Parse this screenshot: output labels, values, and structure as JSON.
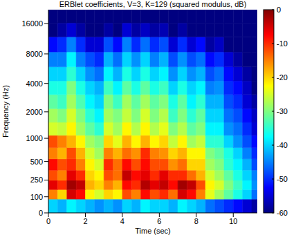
{
  "chart_data": {
    "type": "heatmap",
    "title": "ERBlet coefficients, V=3, K=129 (squared modulus, dB)",
    "x_label": "Time (sec)",
    "y_label": "Frequency (Hz)",
    "xlim": [
      0,
      11.3
    ],
    "xticks": [
      0,
      2,
      4,
      6,
      8,
      10
    ],
    "ylim": [
      0,
      22050
    ],
    "yticks": [
      0,
      100,
      250,
      500,
      1000,
      2000,
      4000,
      8000,
      16000
    ],
    "x": [
      0.25,
      0.75,
      1.25,
      1.75,
      2.25,
      2.75,
      3.25,
      3.75,
      4.25,
      4.75,
      5.25,
      5.75,
      6.25,
      6.75,
      7.25,
      7.75,
      8.25,
      8.75,
      9.25,
      9.75,
      10.25,
      10.75,
      11.25
    ],
    "y": [
      50,
      120,
      200,
      300,
      450,
      650,
      900,
      1300,
      1800,
      2600,
      3600,
      5000,
      7000,
      10000,
      14000,
      19000
    ],
    "values": [
      [
        -40,
        -42,
        -38,
        -40,
        -42,
        -44,
        -42,
        -44,
        -40,
        -42,
        -38,
        -40,
        -40,
        -42,
        -38,
        -40,
        -42,
        -46,
        -48,
        -50,
        -52,
        -55,
        -58
      ],
      [
        -15,
        -20,
        -5,
        -8,
        -22,
        -25,
        -20,
        -22,
        -12,
        -15,
        -8,
        -12,
        -10,
        -14,
        -5,
        -8,
        -15,
        -24,
        -28,
        -32,
        -36,
        -40,
        -46
      ],
      [
        -6,
        -10,
        -2,
        -4,
        -18,
        -20,
        -15,
        -18,
        -8,
        -10,
        -3,
        -6,
        -4,
        -8,
        -2,
        -4,
        -12,
        -22,
        -25,
        -30,
        -34,
        -38,
        -44
      ],
      [
        -12,
        -15,
        -6,
        -10,
        -20,
        -22,
        -12,
        -14,
        -4,
        -8,
        -6,
        -10,
        -6,
        -10,
        -10,
        -14,
        -18,
        -25,
        -28,
        -32,
        -36,
        -40,
        -45
      ],
      [
        -8,
        -12,
        -10,
        -15,
        -22,
        -25,
        -10,
        -14,
        -8,
        -12,
        -8,
        -12,
        -12,
        -16,
        -14,
        -20,
        -20,
        -28,
        -30,
        -35,
        -38,
        -42,
        -48
      ],
      [
        -15,
        -18,
        -12,
        -18,
        -25,
        -28,
        -15,
        -18,
        -14,
        -16,
        -10,
        -15,
        -16,
        -20,
        -18,
        -22,
        -22,
        -30,
        -32,
        -36,
        -40,
        -45,
        -50
      ],
      [
        -12,
        -15,
        -18,
        -22,
        -28,
        -30,
        -20,
        -24,
        -18,
        -22,
        -18,
        -22,
        -20,
        -26,
        -22,
        -28,
        -26,
        -35,
        -35,
        -40,
        -44,
        -48,
        -52
      ],
      [
        -25,
        -26,
        -22,
        -28,
        -32,
        -35,
        -25,
        -28,
        -22,
        -27,
        -22,
        -27,
        -24,
        -30,
        -27,
        -32,
        -30,
        -38,
        -38,
        -44,
        -46,
        -50,
        -55
      ],
      [
        -28,
        -30,
        -25,
        -30,
        -35,
        -38,
        -28,
        -30,
        -26,
        -30,
        -25,
        -30,
        -27,
        -34,
        -30,
        -35,
        -32,
        -40,
        -40,
        -46,
        -48,
        -52,
        -56
      ],
      [
        -32,
        -34,
        -28,
        -33,
        -38,
        -40,
        -30,
        -34,
        -28,
        -32,
        -28,
        -32,
        -30,
        -36,
        -32,
        -38,
        -35,
        -42,
        -42,
        -48,
        -50,
        -55,
        -58
      ],
      [
        -36,
        -36,
        -30,
        -36,
        -40,
        -42,
        -34,
        -38,
        -32,
        -36,
        -32,
        -36,
        -34,
        -40,
        -36,
        -40,
        -38,
        -45,
        -44,
        -50,
        -52,
        -56,
        -60
      ],
      [
        -40,
        -40,
        -35,
        -40,
        -44,
        -46,
        -38,
        -42,
        -36,
        -40,
        -36,
        -40,
        -38,
        -44,
        -40,
        -44,
        -42,
        -48,
        -46,
        -52,
        -55,
        -58,
        -60
      ],
      [
        -45,
        -45,
        -38,
        -45,
        -48,
        -50,
        -42,
        -46,
        -40,
        -44,
        -40,
        -45,
        -42,
        -48,
        -44,
        -48,
        -46,
        -52,
        -50,
        -55,
        -58,
        -60,
        -60
      ],
      [
        -52,
        -50,
        -45,
        -50,
        -55,
        -55,
        -48,
        -52,
        -45,
        -50,
        -46,
        -50,
        -48,
        -55,
        -50,
        -55,
        -52,
        -58,
        -56,
        -60,
        -60,
        -60,
        -60
      ],
      [
        -60,
        -58,
        -55,
        -58,
        -60,
        -60,
        -58,
        -60,
        -55,
        -58,
        -56,
        -58,
        -57,
        -60,
        -58,
        -60,
        -60,
        -60,
        -60,
        -60,
        -60,
        -60,
        -60
      ],
      [
        -60,
        -60,
        -60,
        -60,
        -60,
        -60,
        -60,
        -60,
        -60,
        -60,
        -60,
        -60,
        -60,
        -60,
        -60,
        -60,
        -60,
        -60,
        -60,
        -60,
        -60,
        -60,
        -60
      ]
    ],
    "colorbar_range": [
      -60,
      0
    ],
    "colorbar_ticks": [
      0,
      -10,
      -20,
      -30,
      -40,
      -50,
      -60
    ]
  }
}
